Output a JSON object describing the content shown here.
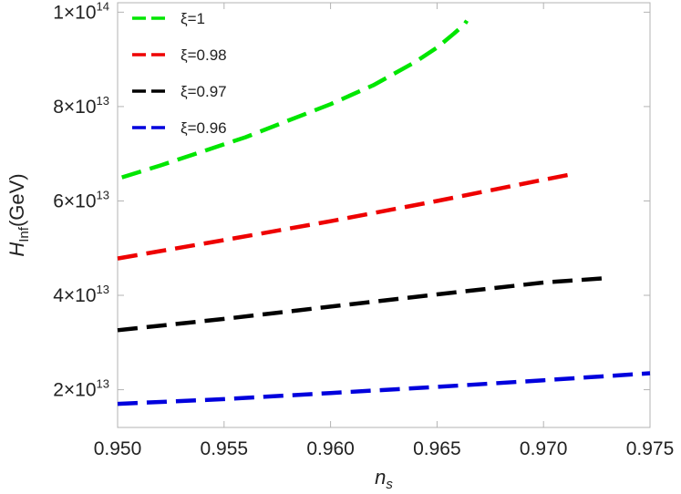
{
  "chart_data": {
    "type": "line",
    "title": "",
    "xlabel": {
      "main": "n",
      "sub": "s"
    },
    "ylabel": {
      "main": "H",
      "sub": "Inf",
      "tail": "(GeV)"
    },
    "xlim": [
      0.95,
      0.975
    ],
    "ylim": [
      12000000000000.0,
      102000000000000.0
    ],
    "x_ticks": [
      {
        "value": 0.95,
        "label": "0.950"
      },
      {
        "value": 0.955,
        "label": "0.955"
      },
      {
        "value": 0.96,
        "label": "0.960"
      },
      {
        "value": 0.965,
        "label": "0.965"
      },
      {
        "value": 0.97,
        "label": "0.970"
      },
      {
        "value": 0.975,
        "label": "0.975"
      }
    ],
    "y_ticks": [
      {
        "value": 20000000000000.0,
        "mantissa": "2",
        "times": "×",
        "base": "10",
        "exponent": "13"
      },
      {
        "value": 40000000000000.0,
        "mantissa": "4",
        "times": "×",
        "base": "10",
        "exponent": "13"
      },
      {
        "value": 60000000000000.0,
        "mantissa": "6",
        "times": "×",
        "base": "10",
        "exponent": "13"
      },
      {
        "value": 80000000000000.0,
        "mantissa": "8",
        "times": "×",
        "base": "10",
        "exponent": "13"
      },
      {
        "value": 100000000000000.0,
        "mantissa": "1",
        "times": "×",
        "base": "10",
        "exponent": "14"
      }
    ],
    "grid": false,
    "legend_position": "top-left",
    "series": [
      {
        "name": "ξ=1",
        "color": "#00e600",
        "x": [
          0.9502,
          0.952,
          0.954,
          0.956,
          0.958,
          0.96,
          0.962,
          0.964,
          0.965,
          0.9658,
          0.9663,
          0.9664
        ],
        "y": [
          65000000000000.0,
          67500000000000.0,
          70500000000000.0,
          73500000000000.0,
          77000000000000.0,
          80500000000000.0,
          84500000000000.0,
          89500000000000.0,
          92500000000000.0,
          95500000000000.0,
          97500000000000.0,
          98200000000000.0
        ]
      },
      {
        "name": "ξ=0.98",
        "color": "#ee0000",
        "x": [
          0.95,
          0.955,
          0.96,
          0.965,
          0.97,
          0.9715
        ],
        "y": [
          47800000000000.0,
          51700000000000.0,
          55700000000000.0,
          60000000000000.0,
          64500000000000.0,
          65800000000000.0
        ]
      },
      {
        "name": "ξ=0.97",
        "color": "#000000",
        "x": [
          0.95,
          0.955,
          0.96,
          0.965,
          0.97,
          0.9731
        ],
        "y": [
          32600000000000.0,
          35000000000000.0,
          37600000000000.0,
          40200000000000.0,
          42700000000000.0,
          43700000000000.0
        ]
      },
      {
        "name": "ξ=0.96",
        "color": "#0000dd",
        "x": [
          0.95,
          0.955,
          0.96,
          0.965,
          0.97,
          0.975
        ],
        "y": [
          17000000000000.0,
          18000000000000.0,
          19300000000000.0,
          20600000000000.0,
          22000000000000.0,
          23500000000000.0
        ]
      }
    ]
  }
}
